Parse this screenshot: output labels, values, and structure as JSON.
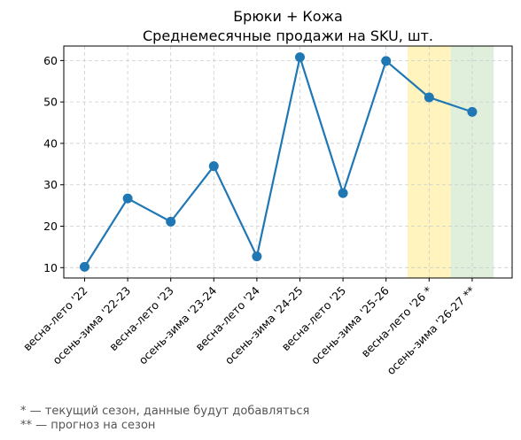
{
  "chart_data": {
    "type": "line",
    "title": "Брюки + Кожа",
    "subtitle": "Среднемесячные продажи на SKU, шт.",
    "xlabel": "",
    "ylabel": "",
    "categories": [
      "весна-лето '22",
      "осень-зима '22-23",
      "весна-лето '23",
      "осень-зима '23-24",
      "весна-лето '24",
      "осень-зима '24-25",
      "весна-лето '25",
      "осень-зима '25-26",
      "весна-лето '26 *",
      "осень-зима '26-27 **"
    ],
    "series": [
      {
        "values": [
          10.2,
          26.7,
          21.1,
          34.5,
          12.7,
          60.8,
          28.0,
          59.9,
          51.1,
          47.6
        ]
      }
    ],
    "ylim": [
      7.5,
      63.5
    ],
    "yticks": [
      10,
      20,
      30,
      40,
      50,
      60
    ],
    "grid": true,
    "line_color": "#1f77b4",
    "highlights": [
      {
        "category_index": 8,
        "color": "#fff2b3"
      },
      {
        "category_index": 9,
        "color": "#d9ecd6"
      }
    ]
  },
  "footnotes": [
    "* — текущий сезон, данные будут добавляться",
    "** — прогноз на сезон"
  ]
}
